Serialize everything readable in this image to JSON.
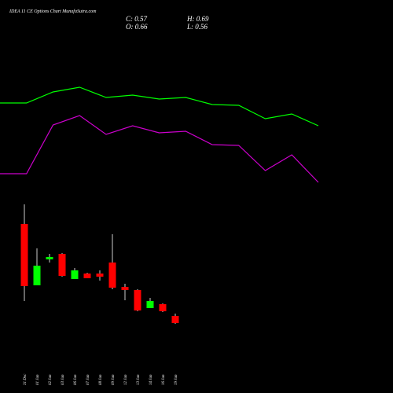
{
  "chart_data": {
    "type": "candlestick",
    "title": "IDEA 11 CE Options  Chart MunafaSutra.com",
    "header": [
      "C: 0.57",
      "H: 0.69",
      "O: 0.66",
      "L: 0.56"
    ],
    "categories": [
      "31 Dec",
      "01 Jan",
      "02 Jan",
      "03 Jan",
      "06 Jan",
      "07 Jan",
      "08 Jan",
      "09 Jan",
      "12 Jan",
      "13 Jan",
      "14 Jan",
      "16 Jan",
      "19 Jan"
    ],
    "open": [
      1.83,
      1.05,
      1.38,
      1.45,
      1.13,
      1.2,
      1.2,
      1.34,
      1.03,
      0.99,
      0.76,
      0.81,
      0.66
    ],
    "high": [
      2.08,
      1.52,
      1.45,
      1.46,
      1.27,
      1.21,
      1.24,
      1.7,
      1.07,
      1.0,
      0.89,
      0.82,
      0.69
    ],
    "low": [
      0.85,
      1.05,
      1.34,
      1.16,
      1.13,
      1.14,
      1.11,
      1.0,
      0.86,
      0.72,
      0.76,
      0.71,
      0.56
    ],
    "close": [
      1.04,
      1.3,
      1.41,
      1.17,
      1.24,
      1.14,
      1.16,
      1.02,
      0.99,
      0.73,
      0.85,
      0.72,
      0.57
    ],
    "up_color": "#00ff00",
    "down_color": "#ff0000",
    "series": [
      {
        "color": "#00ff00",
        "values": [
          3.37,
          3.37,
          3.51,
          3.57,
          3.44,
          3.47,
          3.42,
          3.44,
          3.35,
          3.34,
          3.17,
          3.23,
          3.08
        ]
      },
      {
        "color": "#cc00cc",
        "values": [
          2.47,
          2.47,
          3.09,
          3.21,
          2.97,
          3.08,
          2.99,
          3.01,
          2.84,
          2.83,
          2.51,
          2.71,
          2.36
        ]
      }
    ],
    "ylim": [
      0.45,
      4.5
    ]
  }
}
